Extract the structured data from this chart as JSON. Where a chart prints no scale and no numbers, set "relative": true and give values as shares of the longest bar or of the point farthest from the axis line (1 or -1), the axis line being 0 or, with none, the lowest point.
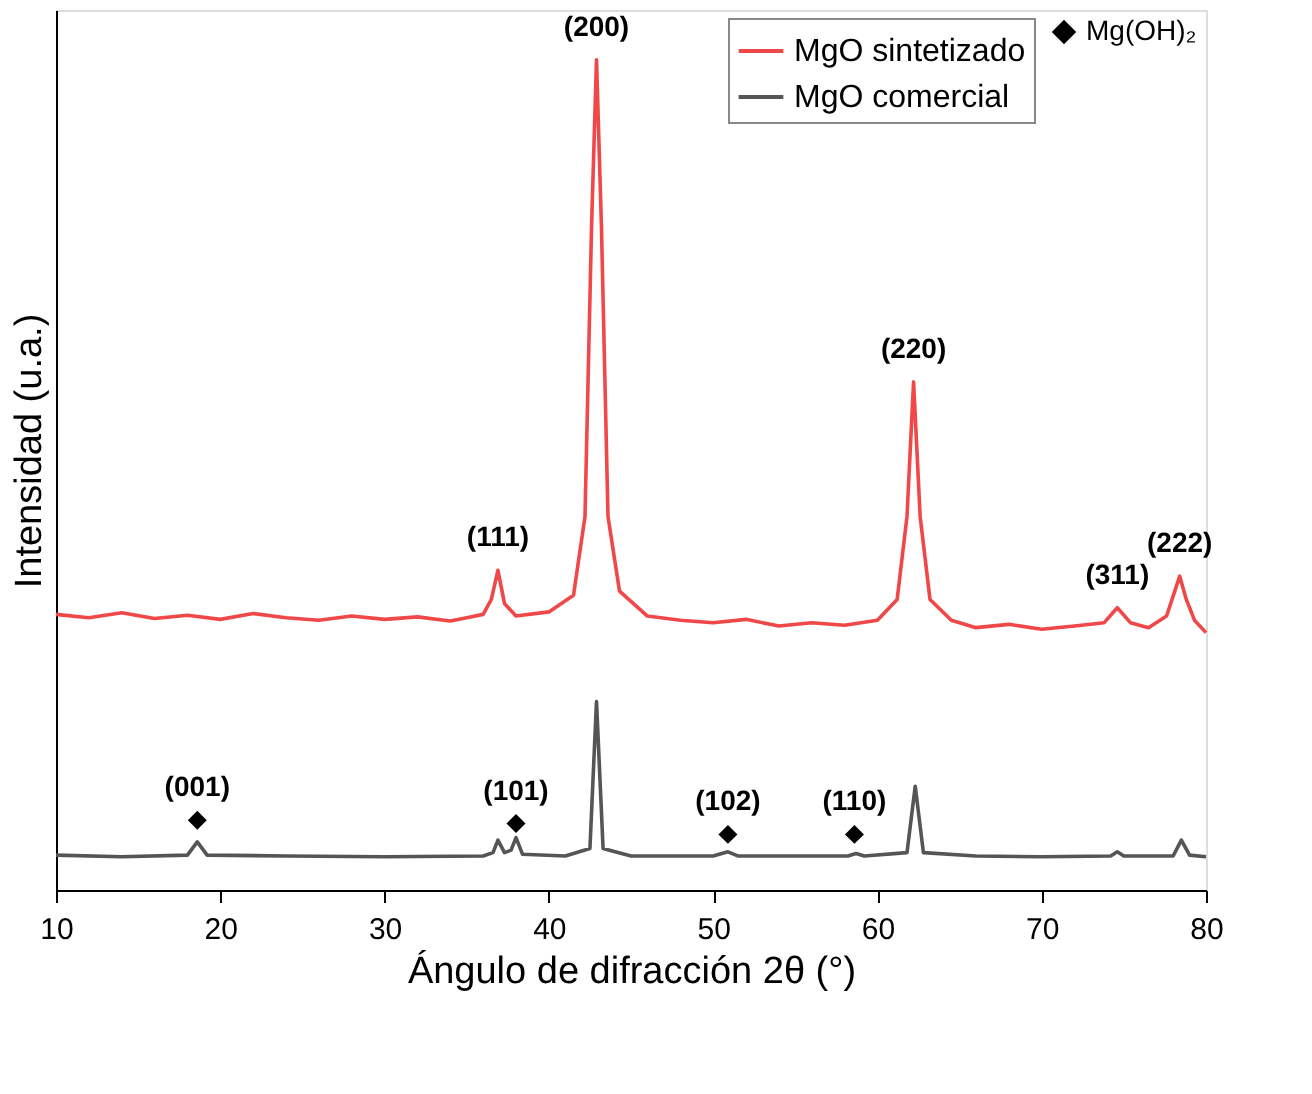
{
  "chart_data": {
    "type": "line",
    "relative": true,
    "xlabel": "Ángulo de difracción 2θ (°)",
    "ylabel": "Intensidad (u.a.)",
    "xlim": [
      10,
      80
    ],
    "xticks": [
      10,
      20,
      30,
      40,
      50,
      60,
      70,
      80
    ],
    "grid": false,
    "legend": "top right",
    "line_style": "solid",
    "series": [
      {
        "name": "MgO sintetizado",
        "color": "#f04848",
        "x": [
          10,
          12,
          14,
          16,
          18,
          20,
          22,
          24,
          26,
          28,
          30,
          32,
          34,
          35,
          36,
          36.5,
          36.9,
          37.3,
          38,
          40,
          41.5,
          42.2,
          42.6,
          42.9,
          43.2,
          43.6,
          44.3,
          46,
          48,
          50,
          52,
          54,
          56,
          58,
          60,
          61.2,
          61.8,
          62.2,
          62.6,
          63.2,
          64.5,
          66,
          68,
          70,
          72,
          73.8,
          74.6,
          75.4,
          76.5,
          77.6,
          78.1,
          78.4,
          78.8,
          79.3,
          80
        ],
        "values": [
          0.332,
          0.328,
          0.334,
          0.327,
          0.331,
          0.326,
          0.333,
          0.328,
          0.325,
          0.33,
          0.326,
          0.329,
          0.324,
          0.328,
          0.332,
          0.35,
          0.385,
          0.345,
          0.33,
          0.335,
          0.355,
          0.45,
          0.8,
          1,
          0.8,
          0.45,
          0.36,
          0.33,
          0.325,
          0.322,
          0.326,
          0.318,
          0.322,
          0.319,
          0.325,
          0.35,
          0.45,
          0.612,
          0.45,
          0.35,
          0.325,
          0.316,
          0.32,
          0.314,
          0.318,
          0.322,
          0.34,
          0.322,
          0.316,
          0.33,
          0.36,
          0.378,
          0.35,
          0.325,
          0.31
        ]
      },
      {
        "name": "MgO comercial",
        "color": "#555555",
        "x": [
          10,
          14,
          18,
          18.6,
          19.2,
          24,
          30,
          36,
          36.6,
          36.9,
          37.3,
          37.7,
          38.0,
          38.4,
          41,
          42.5,
          42.9,
          43.3,
          45,
          50,
          50.9,
          51.5,
          55,
          58.2,
          58.7,
          59.2,
          61.8,
          62.3,
          62.8,
          66,
          70,
          74.2,
          74.6,
          75,
          78,
          78.5,
          79,
          80
        ],
        "values": [
          0.042,
          0.04,
          0.042,
          0.058,
          0.042,
          0.041,
          0.04,
          0.041,
          0.045,
          0.06,
          0.045,
          0.048,
          0.063,
          0.043,
          0.041,
          0.05,
          0.227,
          0.05,
          0.041,
          0.041,
          0.046,
          0.041,
          0.041,
          0.041,
          0.044,
          0.041,
          0.045,
          0.125,
          0.045,
          0.041,
          0.04,
          0.041,
          0.046,
          0.041,
          0.041,
          0.06,
          0.042,
          0.04
        ]
      },
      {
        "name": "Mg(OH)₂",
        "type": "scatter",
        "marker": "diamond",
        "color": "#000000",
        "x": [
          18.6,
          38.0,
          50.9,
          58.6
        ],
        "values": [
          0.084,
          0.08,
          0.067,
          0.067
        ]
      }
    ],
    "annotations": [
      {
        "text": "(200)",
        "x": 42.9,
        "y": 1
      },
      {
        "text": "(111)",
        "x": 36.9,
        "y": 0.385
      },
      {
        "text": "(220)",
        "x": 62.2,
        "y": 0.612
      },
      {
        "text": "(311)",
        "x": 74.6,
        "y": 0.34
      },
      {
        "text": "(222)",
        "x": 78.4,
        "y": 0.378
      },
      {
        "text": "(001)",
        "x": 18.6,
        "y": 0.084
      },
      {
        "text": "(101)",
        "x": 38.0,
        "y": 0.08
      },
      {
        "text": "(102)",
        "x": 50.9,
        "y": 0.067
      },
      {
        "text": "(110)",
        "x": 58.6,
        "y": 0.067
      }
    ]
  }
}
